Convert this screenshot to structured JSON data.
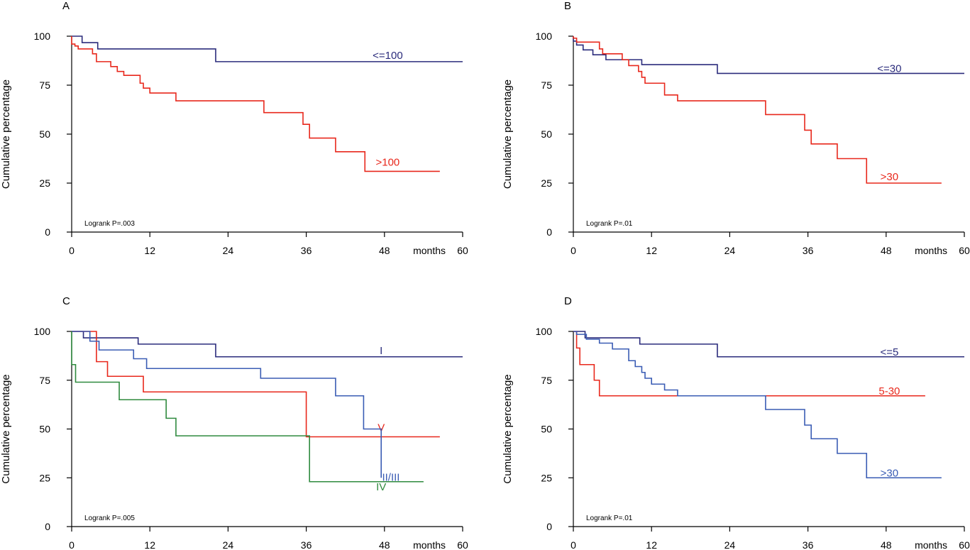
{
  "chart_data": [
    {
      "type": "line",
      "panel": "A",
      "ylabel": "Cumulative percentage",
      "xunit": "months",
      "xticks": [
        "0",
        "12",
        "24",
        "36",
        "48",
        "60"
      ],
      "yticks": [
        "0",
        "25",
        "50",
        "75",
        "100"
      ],
      "xlim": [
        0,
        60
      ],
      "ylim": [
        0,
        100
      ],
      "annotation": "Logrank P=.003",
      "series": [
        {
          "name": "<=100",
          "color": "#2b2c7c",
          "x": [
            0,
            0.3,
            1.6,
            4,
            22.1,
            60
          ],
          "y": [
            100,
            100,
            96.7,
            93.5,
            87,
            87
          ]
        },
        {
          "name": ">100",
          "color": "#e8281c",
          "x": [
            0,
            0.5,
            1,
            3.2,
            3.8,
            6,
            7,
            8,
            10.5,
            11,
            12,
            16,
            29.5,
            35.5,
            36.5,
            40.5,
            45,
            56.5
          ],
          "y": [
            96,
            95,
            93.5,
            91,
            87,
            84.5,
            82,
            80,
            76,
            73.5,
            71,
            67,
            61,
            55,
            48,
            41,
            31,
            31
          ]
        }
      ]
    },
    {
      "type": "line",
      "panel": "B",
      "ylabel": "Cumulative percentage",
      "xunit": "months",
      "xticks": [
        "0",
        "12",
        "24",
        "36",
        "48",
        "60"
      ],
      "yticks": [
        "0",
        "25",
        "50",
        "75",
        "100"
      ],
      "xlim": [
        0,
        60
      ],
      "ylim": [
        0,
        100
      ],
      "annotation": "Logrank P=.01",
      "series": [
        {
          "name": "<=30",
          "color": "#2b2c7c",
          "x": [
            0,
            0.5,
            1.5,
            3,
            5,
            10.5,
            22.1,
            60
          ],
          "y": [
            97.5,
            95.5,
            93,
            90.5,
            88,
            85.5,
            81,
            81
          ]
        },
        {
          "name": ">30",
          "color": "#e8281c",
          "x": [
            0,
            0.5,
            4,
            4.5,
            7.5,
            8.5,
            10,
            10.5,
            11,
            14,
            16,
            29.5,
            35.5,
            36.5,
            40.5,
            45,
            56.5
          ],
          "y": [
            99,
            97,
            93.5,
            91,
            88,
            85,
            82,
            79,
            76,
            70,
            67,
            60,
            52,
            45,
            37.5,
            25,
            25
          ]
        }
      ]
    },
    {
      "type": "line",
      "panel": "C",
      "ylabel": "Cumulative percentage",
      "xunit": "months",
      "xticks": [
        "0",
        "12",
        "24",
        "36",
        "48",
        "60"
      ],
      "yticks": [
        "0",
        "25",
        "50",
        "75",
        "100"
      ],
      "xlim": [
        0,
        60
      ],
      "ylim": [
        0,
        100
      ],
      "annotation": "Logrank P=.005",
      "series": [
        {
          "name": "I",
          "color": "#2b2c7c",
          "x": [
            0,
            1.8,
            10.2,
            22.1,
            60
          ],
          "y": [
            100,
            96.7,
            93.5,
            87,
            87
          ]
        },
        {
          "name": "V",
          "color": "#e8281c",
          "x": [
            0,
            3.8,
            5.5,
            11,
            36,
            56.5
          ],
          "y": [
            100,
            84.5,
            77,
            69,
            46,
            46
          ]
        },
        {
          "name": "II/III",
          "color": "#3a5cb4",
          "x": [
            0,
            2.8,
            4.2,
            9.5,
            11.5,
            29,
            40.5,
            44.8,
            47.5
          ],
          "y": [
            100,
            95,
            90.5,
            86,
            81,
            76,
            67,
            50,
            25
          ]
        },
        {
          "name": "IV",
          "color": "#2f8a3e",
          "x": [
            0,
            0.6,
            7.3,
            14.5,
            16,
            36.5,
            54
          ],
          "y": [
            83,
            74,
            65,
            55.5,
            46.5,
            23,
            23
          ]
        }
      ]
    },
    {
      "type": "line",
      "panel": "D",
      "ylabel": "Cumulative percentage",
      "xunit": "months",
      "xticks": [
        "0",
        "12",
        "24",
        "36",
        "48",
        "60"
      ],
      "yticks": [
        "0",
        "25",
        "50",
        "75",
        "100"
      ],
      "xlim": [
        0,
        60
      ],
      "ylim": [
        0,
        100
      ],
      "annotation": "Logrank P=.01",
      "series": [
        {
          "name": "<=5",
          "color": "#2b2c7c",
          "x": [
            0,
            0.3,
            1.8,
            10.2,
            22.1,
            60
          ],
          "y": [
            100,
            100,
            96.7,
            93.5,
            87,
            87
          ]
        },
        {
          "name": "5-30",
          "color": "#e8281c",
          "x": [
            0,
            0.5,
            1,
            3.2,
            4,
            54
          ],
          "y": [
            100,
            91.5,
            83,
            75,
            67,
            67
          ]
        },
        {
          "name": ">30",
          "color": "#3a5cb4",
          "x": [
            0,
            0.5,
            2,
            4,
            6,
            8.5,
            9.5,
            10.5,
            11,
            12,
            14,
            16,
            29.5,
            35.5,
            36.5,
            40.5,
            45,
            56.5
          ],
          "y": [
            100,
            98.5,
            96,
            94,
            91,
            85,
            82,
            79,
            76,
            73,
            70,
            67,
            60,
            52,
            45,
            37.5,
            25,
            25
          ]
        }
      ]
    }
  ]
}
